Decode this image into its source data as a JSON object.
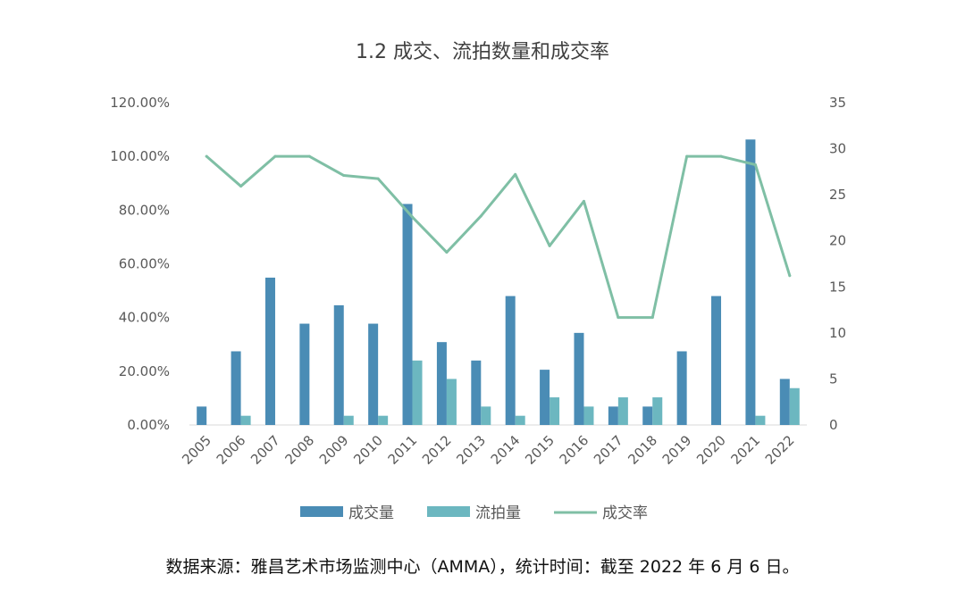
{
  "chart_data": {
    "type": "bar+line",
    "title": "1.2 成交、流拍数量和成交率",
    "categories": [
      "2005",
      "2006",
      "2007",
      "2008",
      "2009",
      "2010",
      "2011",
      "2012",
      "2013",
      "2014",
      "2015",
      "2016",
      "2017",
      "2018",
      "2019",
      "2020",
      "2021",
      "2022"
    ],
    "series": [
      {
        "name": "成交量",
        "type": "bar",
        "axis": "right",
        "color": "#4A8CB5",
        "values": [
          2,
          8,
          16,
          11,
          13,
          11,
          24,
          9,
          7,
          14,
          6,
          10,
          2,
          2,
          8,
          14,
          31,
          5
        ]
      },
      {
        "name": "流拍量",
        "type": "bar",
        "axis": "right",
        "color": "#6CB7C0",
        "values": [
          0,
          1,
          0,
          0,
          1,
          1,
          7,
          5,
          2,
          1,
          3,
          2,
          3,
          3,
          0,
          0,
          1,
          4
        ]
      },
      {
        "name": "成交率",
        "type": "line",
        "axis": "left",
        "color": "#7FBFA5",
        "values": [
          1.0,
          0.889,
          1.0,
          1.0,
          0.929,
          0.917,
          0.774,
          0.643,
          0.778,
          0.933,
          0.667,
          0.833,
          0.4,
          0.4,
          1.0,
          1.0,
          0.969,
          0.556
        ]
      }
    ],
    "y_left": {
      "ylim": [
        0,
        1.2
      ],
      "ticks": [
        "0.00%",
        "20.00%",
        "40.00%",
        "60.00%",
        "80.00%",
        "100.00%",
        "120.00%"
      ]
    },
    "y_right": {
      "ylim": [
        0,
        35
      ],
      "ticks": [
        "0",
        "5",
        "10",
        "15",
        "20",
        "25",
        "30",
        "35"
      ]
    },
    "grid": false,
    "legend_position": "bottom"
  },
  "source_note": "数据来源：雅昌艺术市场监测中心（AMMA），统计时间：截至 2022 年 6 月 6 日。"
}
